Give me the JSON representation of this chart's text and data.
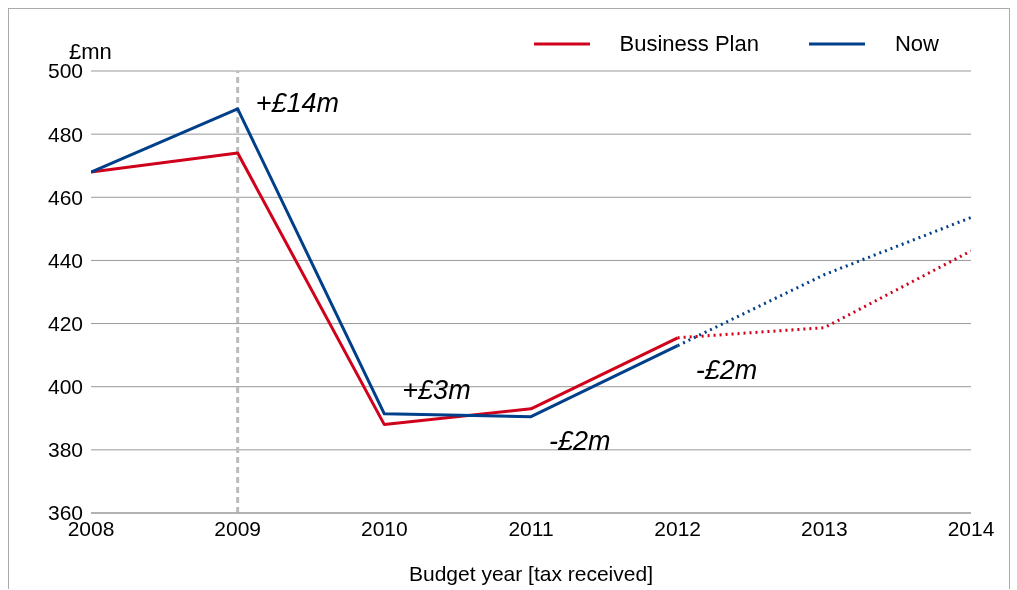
{
  "chart_data": {
    "type": "line",
    "ylabel": "£mn",
    "xlabel": "Budget year [tax received]",
    "x": [
      2008,
      2009,
      2010,
      2011,
      2012,
      2013,
      2014
    ],
    "series": [
      {
        "name": "Business Plan",
        "color": "#d0021b",
        "line_style": "solid",
        "values": [
          468,
          474,
          388,
          393,
          415.5,
          null,
          null
        ]
      },
      {
        "name": "Now",
        "color": "#003f8a",
        "line_style": "solid",
        "values": [
          468,
          488,
          391.4,
          390.5,
          413,
          null,
          null
        ]
      },
      {
        "color": "#d0021b",
        "line_style": "dotted",
        "values": [
          null,
          null,
          null,
          null,
          415.5,
          418.7,
          443
        ]
      },
      {
        "color": "#003f8a",
        "line_style": "dotted",
        "values": [
          null,
          null,
          null,
          null,
          413,
          435.5,
          453.6
        ]
      }
    ],
    "xlim": [
      2008,
      2014
    ],
    "xticks": [
      2008,
      2009,
      2010,
      2011,
      2012,
      2013,
      2014
    ],
    "ylim": [
      360,
      500
    ],
    "yticks": [
      360,
      380,
      400,
      420,
      440,
      460,
      480,
      500
    ],
    "grid": "y",
    "legend": "top right",
    "marker": "none",
    "ref_lines": [
      {
        "axis": "x",
        "value": 2009,
        "color": "#bbbbbb",
        "line_style": "dashed"
      }
    ],
    "annotations": [
      {
        "text": "+£14m",
        "x": 2009,
        "y": 488
      },
      {
        "text": "+£3m",
        "x": 2010,
        "y": 391.4
      },
      {
        "text": "-£2m",
        "x": 2011,
        "y": 390.5
      },
      {
        "text": "-£2m",
        "x": 2012,
        "y": 413
      }
    ]
  }
}
